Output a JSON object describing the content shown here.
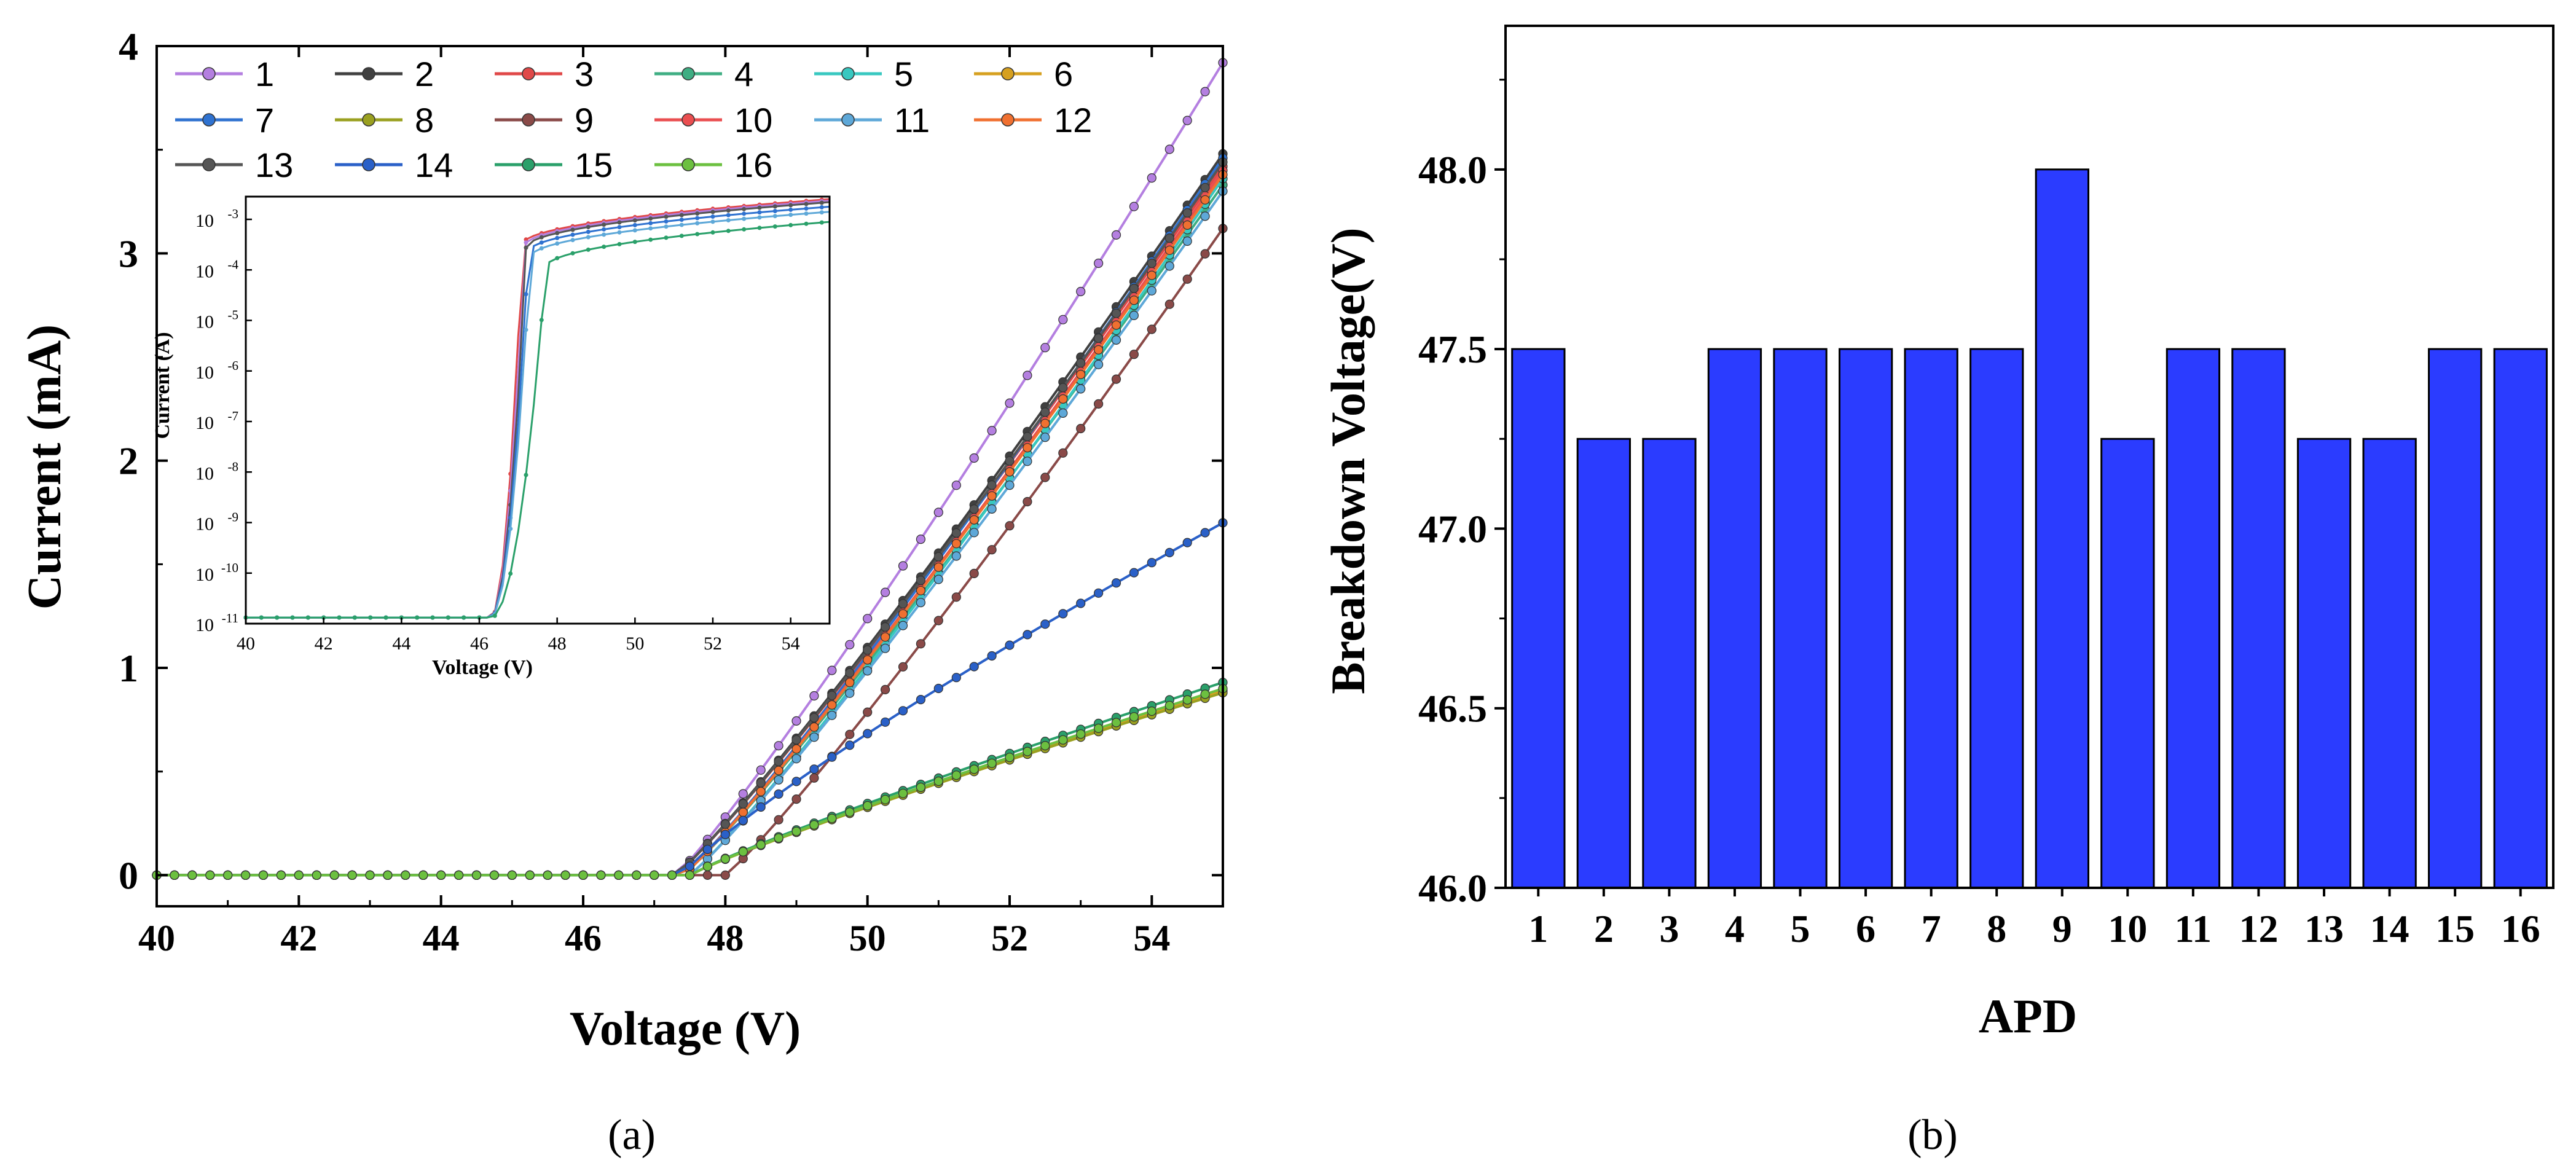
{
  "chart_data": [
    {
      "type": "line",
      "title": "",
      "xlabel": "Voltage (V)",
      "ylabel": "Current (mA)",
      "xlim": [
        40,
        55
      ],
      "ylim": [
        -0.15,
        4
      ],
      "xticks": [
        40,
        42,
        44,
        46,
        48,
        50,
        52,
        54
      ],
      "yticks": [
        0,
        1,
        2,
        3,
        4
      ],
      "legend_position": "top-left",
      "panel_label": "(a)",
      "series": [
        {
          "name": "1",
          "color": "#b47fe0",
          "vbr": 47.3,
          "end_value": 3.92,
          "exp": 1.1
        },
        {
          "name": "2",
          "color": "#404040",
          "vbr": 47.3,
          "end_value": 3.48,
          "exp": 1.1
        },
        {
          "name": "3",
          "color": "#e04848",
          "vbr": 47.3,
          "end_value": 3.42,
          "exp": 1.1
        },
        {
          "name": "4",
          "color": "#3fae83",
          "vbr": 47.4,
          "end_value": 3.33,
          "exp": 1.1
        },
        {
          "name": "5",
          "color": "#38c8c0",
          "vbr": 47.5,
          "end_value": 3.36,
          "exp": 1.1
        },
        {
          "name": "6",
          "color": "#d6a020",
          "vbr": 47.5,
          "end_value": 0.89,
          "exp": 0.9
        },
        {
          "name": "7",
          "color": "#2f72d0",
          "vbr": 47.4,
          "end_value": 3.46,
          "exp": 1.1
        },
        {
          "name": "8",
          "color": "#9aa020",
          "vbr": 47.5,
          "end_value": 0.88,
          "exp": 0.9
        },
        {
          "name": "9",
          "color": "#8a4a48",
          "vbr": 48.0,
          "end_value": 3.12,
          "exp": 1.1
        },
        {
          "name": "10",
          "color": "#ea4e50",
          "vbr": 47.4,
          "end_value": 3.4,
          "exp": 1.1
        },
        {
          "name": "11",
          "color": "#5ea8d8",
          "vbr": 47.5,
          "end_value": 3.3,
          "exp": 1.1
        },
        {
          "name": "12",
          "color": "#f07030",
          "vbr": 47.4,
          "end_value": 3.38,
          "exp": 1.1
        },
        {
          "name": "13",
          "color": "#555555",
          "vbr": 47.3,
          "end_value": 3.44,
          "exp": 1.1
        },
        {
          "name": "14",
          "color": "#2a60c8",
          "vbr": 47.4,
          "end_value": 1.7,
          "exp": 0.85
        },
        {
          "name": "15",
          "color": "#2aa06a",
          "vbr": 47.5,
          "end_value": 0.93,
          "exp": 0.9
        },
        {
          "name": "16",
          "color": "#6cc040",
          "vbr": 47.5,
          "end_value": 0.9,
          "exp": 0.9
        }
      ],
      "inset": {
        "type": "line",
        "yscale": "log",
        "xlabel": "Voltage (V)",
        "ylabel": "Current (A)",
        "xlim": [
          40,
          55
        ],
        "ylim_exponent": [
          -11,
          -2.55
        ],
        "xticks": [
          40,
          42,
          44,
          46,
          48,
          50,
          52,
          54
        ],
        "yticks": [
          "10",
          "10",
          "10",
          "10",
          "10",
          "10",
          "10",
          "10",
          "10"
        ],
        "ytick_exponents": [
          "-11",
          "-10",
          "-9",
          "-8",
          "-7",
          "-6",
          "-5",
          "-4",
          "-3"
        ],
        "ytick_values": [
          -11,
          -10,
          -9,
          -8,
          -7,
          -6,
          -5,
          -4,
          -3
        ],
        "dark_current": -10.88,
        "saturation_levels": [
          -2.6,
          -2.63,
          -2.66,
          -2.75,
          -2.85,
          -3.05
        ]
      }
    },
    {
      "type": "bar",
      "title": "",
      "xlabel": "APD",
      "ylabel": "Breakdown Voltage(V)",
      "ylim": [
        46.0,
        48.4
      ],
      "yticks": [
        "46.0",
        "46.5",
        "47.0",
        "47.5",
        "48.0"
      ],
      "ytick_values": [
        46.0,
        46.5,
        47.0,
        47.5,
        48.0
      ],
      "categories": [
        "1",
        "2",
        "3",
        "4",
        "5",
        "6",
        "7",
        "8",
        "9",
        "10",
        "11",
        "12",
        "13",
        "14",
        "15",
        "16"
      ],
      "values": [
        47.5,
        47.25,
        47.25,
        47.5,
        47.5,
        47.5,
        47.5,
        47.5,
        48.0,
        47.25,
        47.5,
        47.5,
        47.25,
        47.25,
        47.5,
        47.5
      ],
      "bar_color": "#2b3cff",
      "panel_label": "(b)"
    }
  ]
}
